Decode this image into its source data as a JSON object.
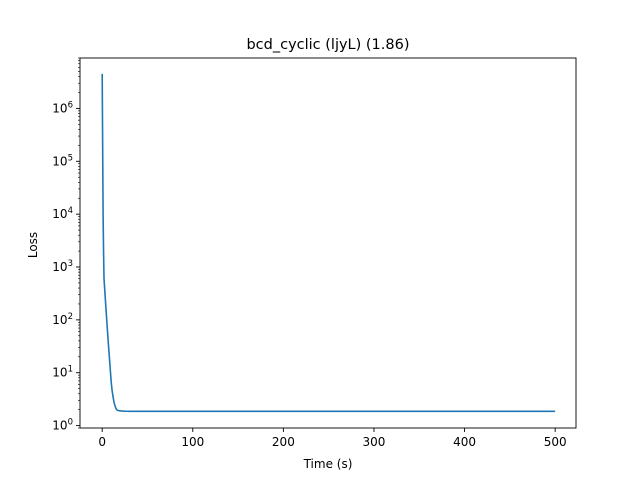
{
  "chart_data": {
    "type": "line",
    "title": "bcd_cyclic (ljyL) (1.86)",
    "xlabel": "Time (s)",
    "ylabel": "Loss",
    "xlim": [
      -24.5,
      523
    ],
    "ylim": [
      0.9,
      9000000
    ],
    "yscale": "log",
    "grid": false,
    "xticks": [
      0,
      100,
      200,
      300,
      400,
      500
    ],
    "xtick_labels": [
      "0",
      "100",
      "200",
      "300",
      "400",
      "500"
    ],
    "yticks": [
      1,
      10,
      100,
      1000,
      10000,
      100000,
      1000000
    ],
    "ytick_labels": [
      {
        "base": "10",
        "exp": "0"
      },
      {
        "base": "10",
        "exp": "1"
      },
      {
        "base": "10",
        "exp": "2"
      },
      {
        "base": "10",
        "exp": "3"
      },
      {
        "base": "10",
        "exp": "4"
      },
      {
        "base": "10",
        "exp": "5"
      },
      {
        "base": "10",
        "exp": "6"
      }
    ],
    "series": [
      {
        "color": "#1f77b4",
        "x": [
          0,
          0.5,
          1,
          1.5,
          2,
          3,
          4,
          5,
          6,
          7,
          8,
          9,
          10,
          11,
          12,
          13,
          14,
          15,
          16,
          17,
          18,
          20,
          22,
          25,
          30,
          40,
          50,
          100,
          150,
          200,
          250,
          300,
          350,
          400,
          450,
          500
        ],
        "y": [
          4500000,
          200000,
          10000,
          2000,
          600,
          330,
          180,
          100,
          56,
          32,
          19,
          11,
          6.5,
          4.5,
          3.5,
          2.8,
          2.4,
          2.15,
          2.0,
          1.95,
          1.92,
          1.9,
          1.88,
          1.87,
          1.865,
          1.862,
          1.861,
          1.86,
          1.86,
          1.86,
          1.86,
          1.86,
          1.86,
          1.86,
          1.86,
          1.86
        ]
      }
    ]
  }
}
